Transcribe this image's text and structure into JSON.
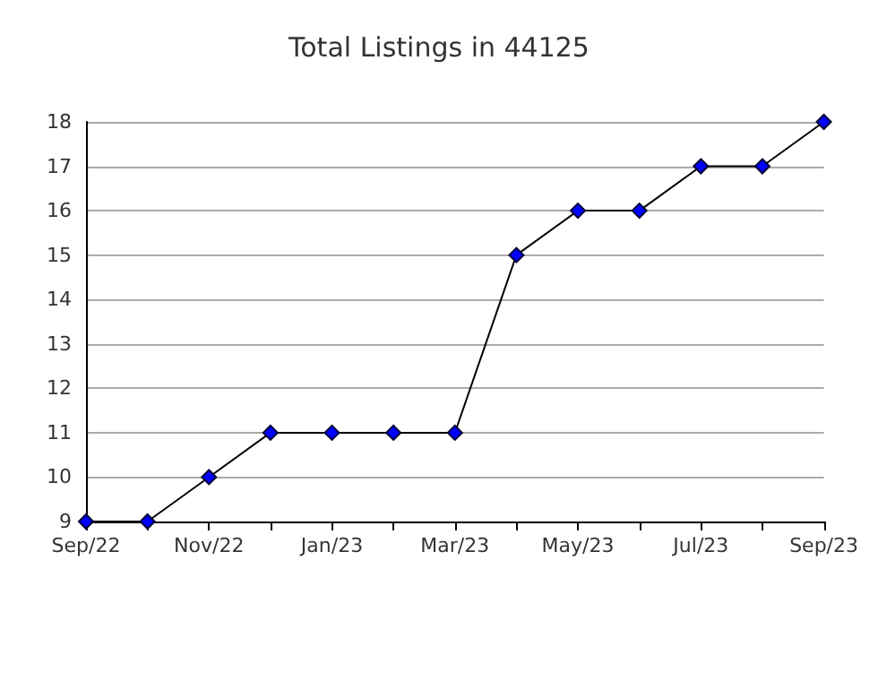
{
  "chart_data": {
    "type": "line",
    "title": "Total Listings in 44125",
    "categories": [
      "Sep/22",
      null,
      "Nov/22",
      null,
      "Jan/23",
      null,
      "Mar/23",
      null,
      "May/23",
      null,
      "Jul/23",
      null,
      "Sep/23"
    ],
    "series": [
      {
        "color": "#0000ff",
        "values": [
          9,
          9,
          10,
          11,
          11,
          11,
          11,
          15,
          16,
          16,
          17,
          17,
          18
        ]
      }
    ],
    "ylim": [
      9,
      18
    ],
    "yticks": [
      9,
      10,
      11,
      12,
      13,
      14,
      15,
      16,
      17,
      18
    ],
    "grid": "y",
    "marker": "diamond",
    "line_style": "solid"
  }
}
